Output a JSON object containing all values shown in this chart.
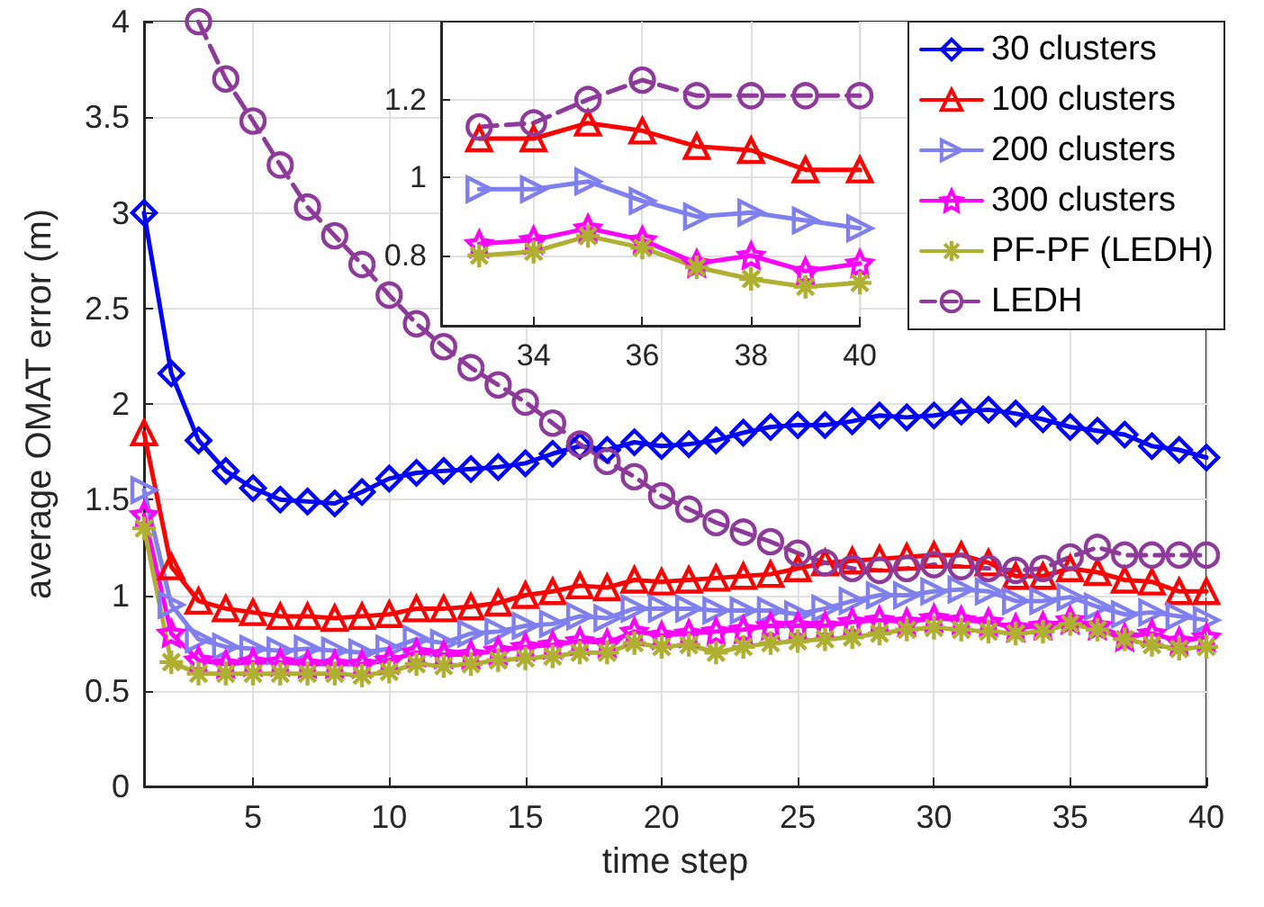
{
  "chart_data": [
    {
      "type": "line",
      "xlabel": "time step",
      "ylabel": "average OMAT error (m)",
      "x": [
        1,
        2,
        3,
        4,
        5,
        6,
        7,
        8,
        9,
        10,
        11,
        12,
        13,
        14,
        15,
        16,
        17,
        18,
        19,
        20,
        21,
        22,
        23,
        24,
        25,
        26,
        27,
        28,
        29,
        30,
        31,
        32,
        33,
        34,
        35,
        36,
        37,
        38,
        39,
        40
      ],
      "xlim": [
        1,
        40
      ],
      "ylim": [
        0,
        4
      ],
      "xticks": [
        5,
        10,
        15,
        20,
        25,
        30,
        35,
        40
      ],
      "yticks": [
        0,
        0.5,
        1,
        1.5,
        2,
        2.5,
        3,
        3.5,
        4
      ],
      "grid": true,
      "legend": "top right",
      "series": [
        {
          "name": "30 clusters",
          "color": "#0000ff",
          "marker": "diamond",
          "values": [
            3.0,
            2.16,
            1.81,
            1.65,
            1.56,
            1.5,
            1.49,
            1.48,
            1.54,
            1.61,
            1.64,
            1.65,
            1.66,
            1.67,
            1.69,
            1.74,
            1.78,
            1.76,
            1.8,
            1.78,
            1.79,
            1.81,
            1.85,
            1.88,
            1.89,
            1.89,
            1.91,
            1.94,
            1.93,
            1.94,
            1.96,
            1.97,
            1.95,
            1.92,
            1.88,
            1.86,
            1.84,
            1.78,
            1.76,
            1.72
          ]
        },
        {
          "name": "100 clusters",
          "color": "#ff0000",
          "marker": "triangle",
          "values": [
            1.85,
            1.15,
            0.97,
            0.93,
            0.91,
            0.89,
            0.89,
            0.88,
            0.89,
            0.9,
            0.93,
            0.93,
            0.94,
            0.96,
            1.0,
            1.02,
            1.05,
            1.04,
            1.08,
            1.07,
            1.08,
            1.09,
            1.1,
            1.11,
            1.14,
            1.17,
            1.18,
            1.19,
            1.2,
            1.21,
            1.21,
            1.17,
            1.1,
            1.1,
            1.14,
            1.12,
            1.08,
            1.07,
            1.02,
            1.02
          ]
        },
        {
          "name": "200 clusters",
          "color": "#7f7fef",
          "marker": "triangle-right",
          "values": [
            1.55,
            0.95,
            0.77,
            0.73,
            0.72,
            0.71,
            0.72,
            0.71,
            0.7,
            0.72,
            0.77,
            0.75,
            0.8,
            0.81,
            0.84,
            0.85,
            0.89,
            0.88,
            0.93,
            0.93,
            0.93,
            0.92,
            0.92,
            0.92,
            0.9,
            0.93,
            0.97,
            1.0,
            1.0,
            1.02,
            1.03,
            1.02,
            0.97,
            0.97,
            0.99,
            0.94,
            0.9,
            0.91,
            0.89,
            0.87
          ]
        },
        {
          "name": "300 clusters",
          "color": "#ff00ff",
          "marker": "star",
          "values": [
            1.42,
            0.8,
            0.66,
            0.64,
            0.65,
            0.65,
            0.64,
            0.64,
            0.64,
            0.66,
            0.7,
            0.69,
            0.69,
            0.71,
            0.73,
            0.74,
            0.76,
            0.75,
            0.81,
            0.79,
            0.8,
            0.81,
            0.82,
            0.84,
            0.84,
            0.84,
            0.86,
            0.87,
            0.86,
            0.88,
            0.87,
            0.86,
            0.83,
            0.84,
            0.87,
            0.84,
            0.78,
            0.8,
            0.76,
            0.78
          ]
        },
        {
          "name": "PF-PF (LEDH)",
          "color": "#afaf32",
          "marker": "cross",
          "values": [
            1.35,
            0.65,
            0.59,
            0.59,
            0.59,
            0.59,
            0.59,
            0.59,
            0.58,
            0.6,
            0.64,
            0.63,
            0.64,
            0.66,
            0.67,
            0.68,
            0.7,
            0.7,
            0.75,
            0.73,
            0.74,
            0.7,
            0.73,
            0.75,
            0.76,
            0.77,
            0.78,
            0.8,
            0.82,
            0.83,
            0.82,
            0.81,
            0.8,
            0.81,
            0.85,
            0.82,
            0.77,
            0.74,
            0.72,
            0.73
          ]
        },
        {
          "name": "LEDH",
          "color": "#8e3a9a",
          "marker": "circle",
          "line_style": "dashed",
          "values": [
            null,
            null,
            4.0,
            3.7,
            3.48,
            3.25,
            3.03,
            2.88,
            2.73,
            2.57,
            2.42,
            2.3,
            2.19,
            2.1,
            2.01,
            1.9,
            1.79,
            1.7,
            1.62,
            1.52,
            1.45,
            1.38,
            1.33,
            1.28,
            1.22,
            1.17,
            1.14,
            1.13,
            1.14,
            1.16,
            1.15,
            1.14,
            1.13,
            1.14,
            1.2,
            1.25,
            1.21,
            1.21,
            1.21,
            1.21
          ]
        }
      ]
    },
    {
      "type": "line",
      "x": [
        33,
        34,
        35,
        36,
        37,
        38,
        39,
        40
      ],
      "xlim": [
        32.3,
        40
      ],
      "ylim": [
        0.62,
        1.4
      ],
      "xticks": [
        34,
        36,
        38,
        40
      ],
      "yticks": [
        0.8,
        1,
        1.2
      ],
      "grid": true,
      "series": [
        {
          "color": "#0000ff",
          "marker": "diamond",
          "values": [
            null,
            null,
            null,
            null,
            null,
            null,
            null,
            null
          ]
        },
        {
          "color": "#ff0000",
          "marker": "triangle",
          "values": [
            1.1,
            1.1,
            1.14,
            1.12,
            1.08,
            1.07,
            1.02,
            1.02
          ]
        },
        {
          "color": "#7f7fef",
          "marker": "triangle-right",
          "values": [
            0.97,
            0.97,
            0.99,
            0.94,
            0.9,
            0.91,
            0.89,
            0.87
          ]
        },
        {
          "color": "#ff00ff",
          "marker": "star",
          "values": [
            0.83,
            0.84,
            0.87,
            0.84,
            0.78,
            0.8,
            0.76,
            0.78
          ]
        },
        {
          "color": "#afaf32",
          "marker": "cross",
          "values": [
            0.8,
            0.81,
            0.85,
            0.82,
            0.77,
            0.74,
            0.72,
            0.73
          ]
        },
        {
          "color": "#8e3a9a",
          "marker": "circle",
          "line_style": "dashed",
          "values": [
            1.13,
            1.14,
            1.2,
            1.25,
            1.21,
            1.21,
            1.21,
            1.21
          ]
        }
      ]
    }
  ]
}
